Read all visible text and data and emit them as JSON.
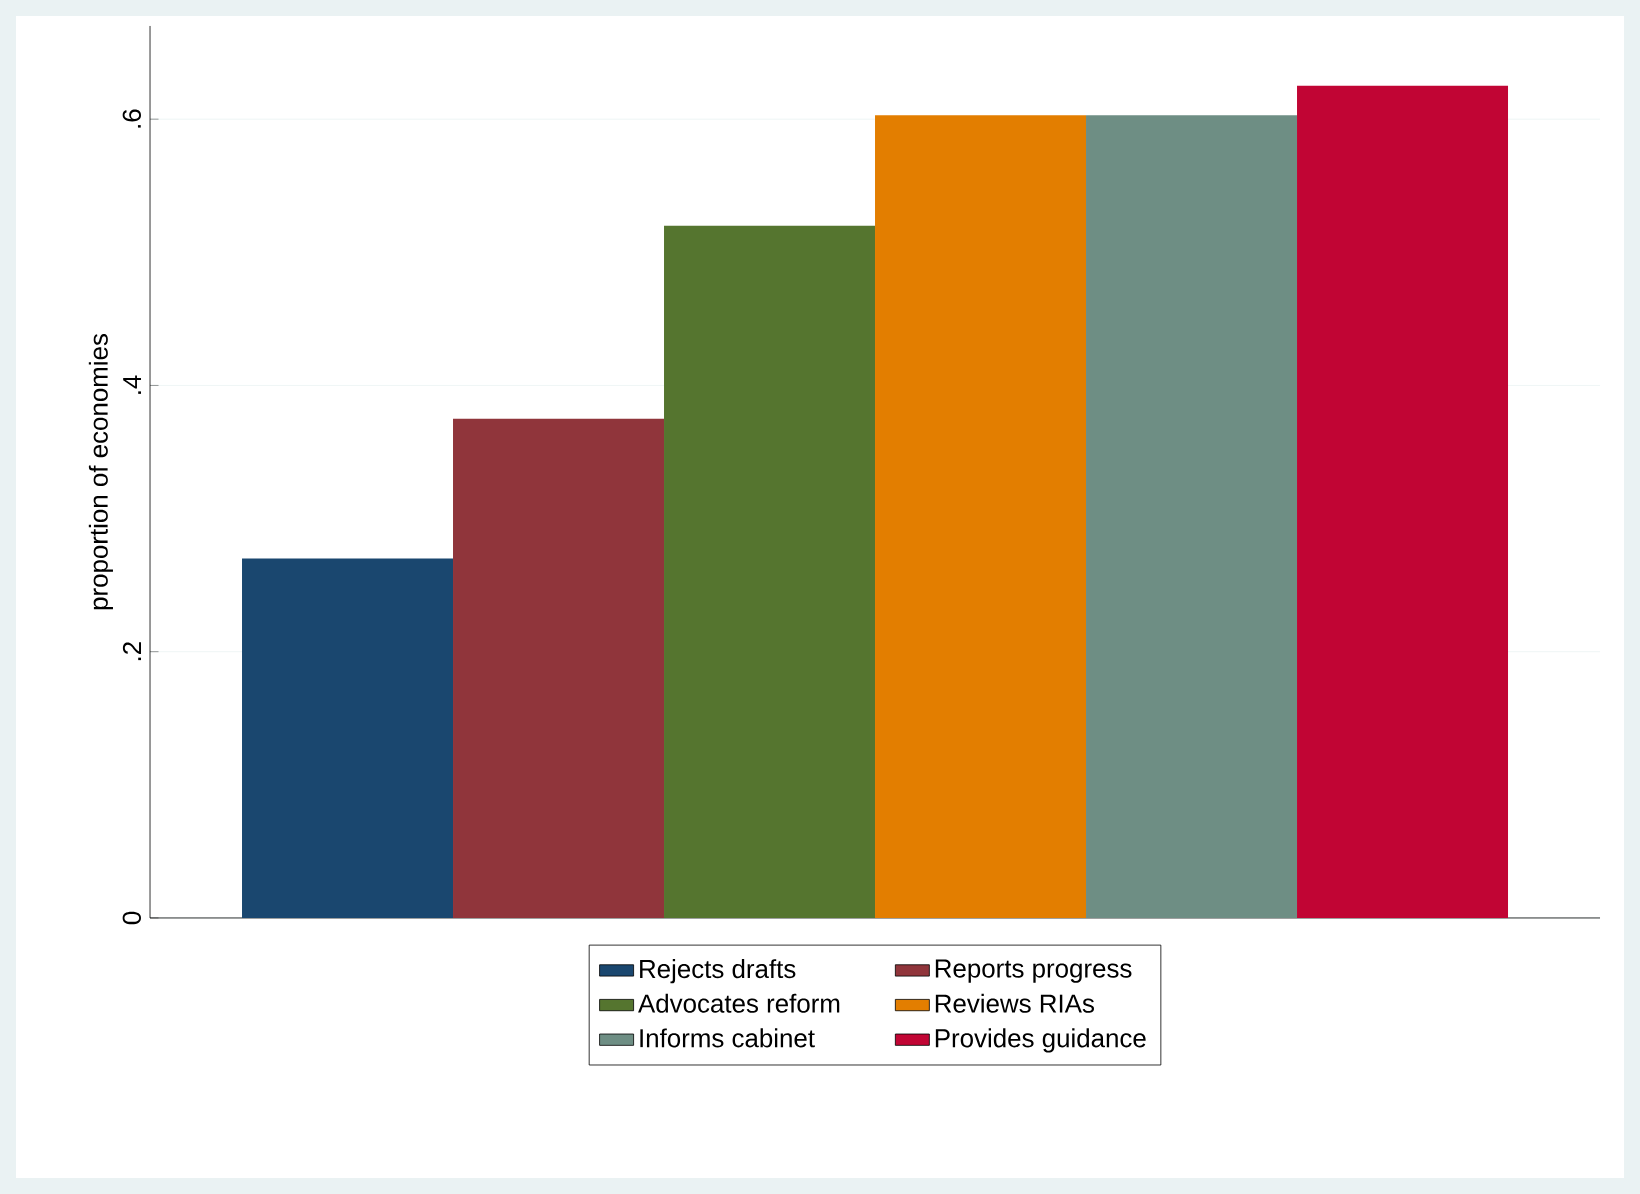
{
  "chart_data": {
    "type": "bar",
    "categories": [
      null
    ],
    "ylabel": "proportion of economies",
    "ylim": [
      0,
      0.67
    ],
    "yticks": [
      0,
      {
        "value": 0.2,
        "label": ".2"
      },
      {
        "value": 0.4,
        "label": ".4"
      },
      {
        "value": 0.6,
        "label": ".6"
      }
    ],
    "grid": "y",
    "legend": "bottom",
    "series": [
      {
        "name": "Rejects drafts",
        "color": "#1a476f",
        "values": [
          0.27
        ]
      },
      {
        "name": "Reports progress",
        "color": "#90353b",
        "values": [
          0.375
        ]
      },
      {
        "name": "Advocates reform",
        "color": "#55752f",
        "values": [
          0.52
        ]
      },
      {
        "name": "Reviews RIAs",
        "color": "#e37e00",
        "values": [
          0.603
        ]
      },
      {
        "name": "Informs cabinet",
        "color": "#6e8e84",
        "values": [
          0.603
        ]
      },
      {
        "name": "Provides guidance",
        "color": "#c10534",
        "values": [
          0.625
        ]
      }
    ]
  }
}
